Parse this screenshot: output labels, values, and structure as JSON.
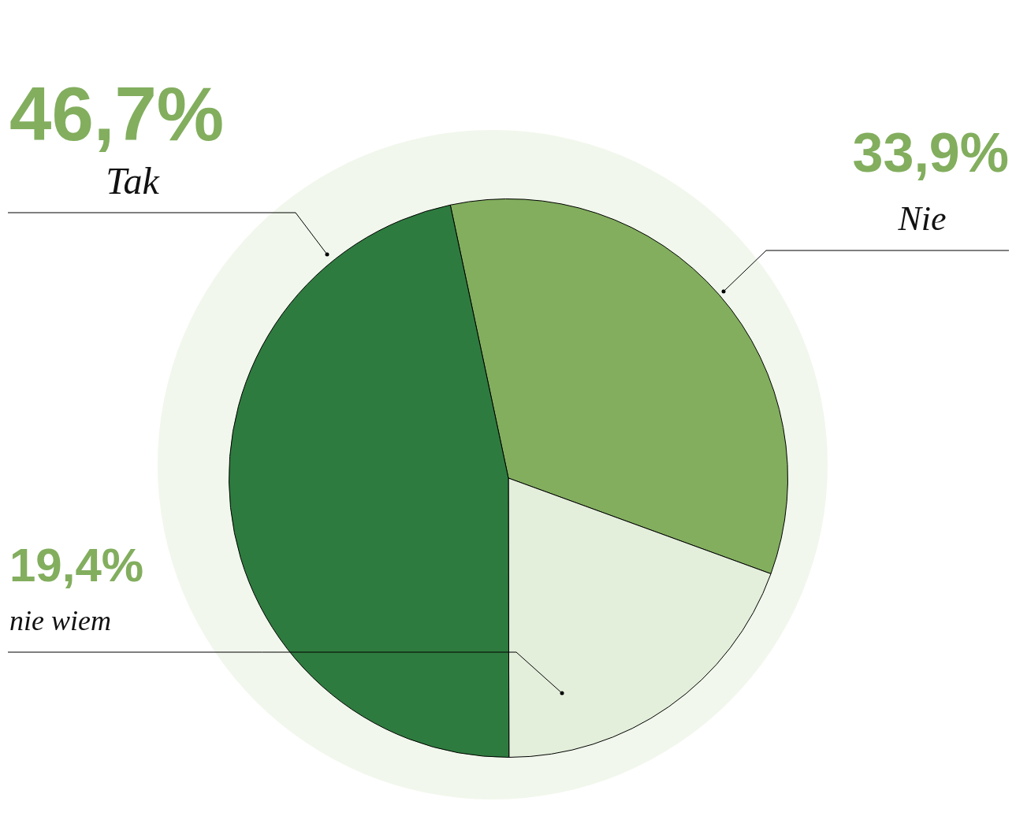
{
  "chart_data": {
    "type": "pie",
    "categories": [
      "Nie",
      "nie wiem",
      "Tak"
    ],
    "values": [
      33.9,
      19.4,
      46.7
    ],
    "value_labels": [
      "33,9%",
      "19,4%",
      "46,7%"
    ],
    "colors": [
      "#82ae5e",
      "#e3eedb",
      "#2e7b3f"
    ],
    "data_labels": true
  }
}
